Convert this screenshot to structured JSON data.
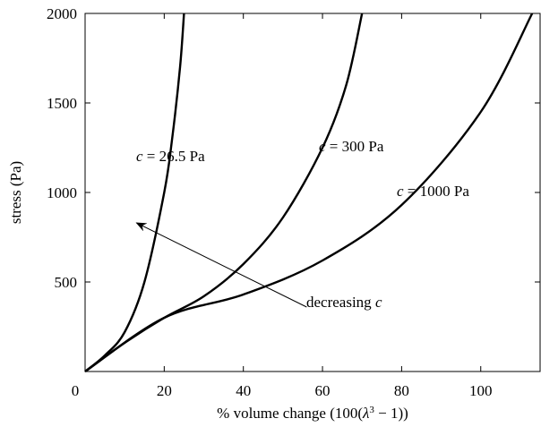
{
  "chart_data": {
    "type": "line",
    "xlabel_prefix": "% volume change (100(",
    "xlabel_symbol": "λ",
    "xlabel_exponent": "3",
    "xlabel_suffix": " − 1))",
    "ylabel": "stress (Pa)",
    "xlim": [
      0,
      115
    ],
    "ylim": [
      0,
      2000
    ],
    "x_ticks": [
      0,
      20,
      40,
      60,
      80,
      100
    ],
    "y_ticks": [
      500,
      1000,
      1500,
      2000
    ],
    "grid": false,
    "series": [
      {
        "label_var": "c",
        "label_value": " = 26.5 Pa",
        "x": [
          0,
          5,
          10,
          15,
          20,
          22,
          24,
          25
        ],
        "y": [
          0,
          90,
          220,
          500,
          1000,
          1300,
          1700,
          2000
        ]
      },
      {
        "label_var": "c",
        "label_value": " = 300 Pa",
        "x": [
          0,
          10,
          20,
          30,
          40,
          50,
          60,
          66,
          70
        ],
        "y": [
          0,
          160,
          300,
          420,
          600,
          860,
          1250,
          1600,
          2000
        ]
      },
      {
        "label_var": "c",
        "label_value": " = 1000 Pa",
        "x": [
          0,
          20,
          40,
          60,
          80,
          100,
          113
        ],
        "y": [
          0,
          300,
          430,
          620,
          930,
          1450,
          2000
        ]
      }
    ],
    "annotation": {
      "text": "decreasing ",
      "var": "c",
      "arrow_from": [
        56,
        360
      ],
      "arrow_to": [
        13,
        830
      ]
    }
  }
}
